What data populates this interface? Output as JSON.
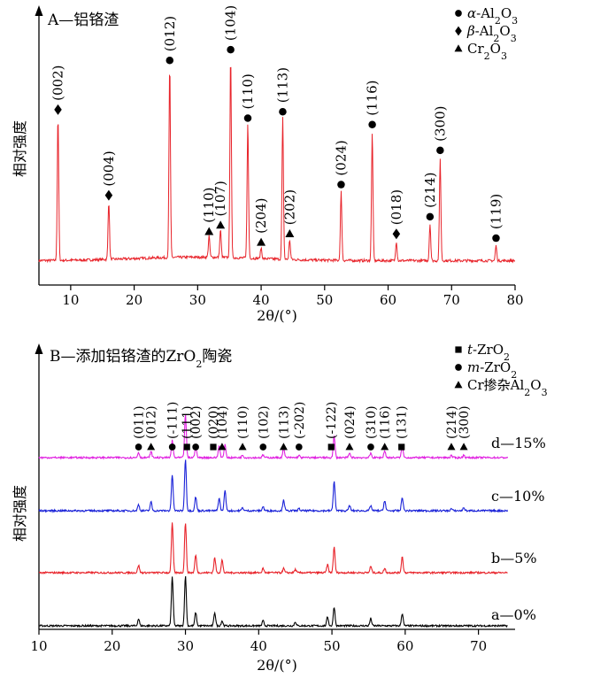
{
  "chart_data": [
    {
      "type": "line",
      "title": "A—铝铬渣",
      "xlabel": "2θ/(°)",
      "ylabel": "相对强度",
      "xlim": [
        5,
        80
      ],
      "xticks": [
        10,
        20,
        30,
        40,
        50,
        60,
        70,
        80
      ],
      "color": "#e8232a",
      "legend": [
        {
          "marker": "circle",
          "prefix": "α",
          "label": "-Al2O3"
        },
        {
          "marker": "diamond",
          "prefix": "β",
          "label": "-Al2O3"
        },
        {
          "marker": "triangle",
          "prefix": "",
          "label": "Cr2O3"
        }
      ],
      "peaks": [
        {
          "x": 8.0,
          "h": 0.67,
          "marker": "diamond",
          "hkl": "(002)"
        },
        {
          "x": 16.0,
          "h": 0.27,
          "marker": "diamond",
          "hkl": "(004)"
        },
        {
          "x": 25.6,
          "h": 0.9,
          "marker": "circle",
          "hkl": "(012)"
        },
        {
          "x": 31.8,
          "h": 0.1,
          "marker": "triangle",
          "hkl": "(110)"
        },
        {
          "x": 33.6,
          "h": 0.13,
          "marker": "triangle",
          "hkl": "(107)"
        },
        {
          "x": 35.2,
          "h": 0.95,
          "marker": "circle",
          "hkl": "(104)"
        },
        {
          "x": 37.9,
          "h": 0.63,
          "marker": "circle",
          "hkl": "(110)"
        },
        {
          "x": 40.0,
          "h": 0.05,
          "marker": "triangle",
          "hkl": "(204)"
        },
        {
          "x": 43.4,
          "h": 0.66,
          "marker": "circle",
          "hkl": "(113)"
        },
        {
          "x": 44.5,
          "h": 0.09,
          "marker": "triangle",
          "hkl": "(202)"
        },
        {
          "x": 52.6,
          "h": 0.32,
          "marker": "circle",
          "hkl": "(024)"
        },
        {
          "x": 57.5,
          "h": 0.6,
          "marker": "circle",
          "hkl": "(116)"
        },
        {
          "x": 61.3,
          "h": 0.09,
          "marker": "diamond",
          "hkl": "(018)"
        },
        {
          "x": 66.6,
          "h": 0.17,
          "marker": "circle",
          "hkl": "(214)"
        },
        {
          "x": 68.2,
          "h": 0.48,
          "marker": "circle",
          "hkl": "(300)"
        },
        {
          "x": 77.0,
          "h": 0.07,
          "marker": "circle",
          "hkl": "(119)"
        }
      ]
    },
    {
      "type": "line",
      "title": "B—添加铝铬渣的ZrO2陶瓷",
      "xlabel": "2θ/(°)",
      "ylabel": "相对强度",
      "xlim": [
        10,
        75
      ],
      "xticks": [
        10,
        20,
        30,
        40,
        50,
        60,
        70
      ],
      "legend": [
        {
          "marker": "square",
          "prefix": "t",
          "label": "-ZrO2"
        },
        {
          "marker": "circle",
          "prefix": "m",
          "label": "-ZrO2"
        },
        {
          "marker": "triangle",
          "prefix": "",
          "label": "Cr掺杂Al2O3"
        }
      ],
      "series": [
        {
          "name": "a—0%",
          "color": "#000000"
        },
        {
          "name": "b—5%",
          "color": "#e8232a"
        },
        {
          "name": "c—10%",
          "color": "#1a22d8"
        },
        {
          "name": "d—15%",
          "color": "#e020e0"
        }
      ],
      "annotations": [
        {
          "x": 23.6,
          "marker": "circle",
          "hkl": "(011)"
        },
        {
          "x": 25.3,
          "marker": "triangle",
          "hkl": "(012)"
        },
        {
          "x": 28.2,
          "marker": "circle",
          "hkl": "(-111)"
        },
        {
          "x": 30.2,
          "marker": "square",
          "hkl": "(111)"
        },
        {
          "x": 31.4,
          "marker": "circle",
          "hkl": "(002)"
        },
        {
          "x": 33.8,
          "marker": "square",
          "hkl": "(020)"
        },
        {
          "x": 35.0,
          "marker": "triangle",
          "hkl": "(104)"
        },
        {
          "x": 37.8,
          "marker": "triangle",
          "hkl": "(110)"
        },
        {
          "x": 40.6,
          "marker": "circle",
          "hkl": "(102)"
        },
        {
          "x": 43.4,
          "marker": "triangle",
          "hkl": "(113)"
        },
        {
          "x": 45.5,
          "marker": "circle",
          "hkl": "(-202)"
        },
        {
          "x": 49.9,
          "marker": "square",
          "hkl": "(-122)"
        },
        {
          "x": 52.4,
          "marker": "triangle",
          "hkl": "(024)"
        },
        {
          "x": 55.3,
          "marker": "circle",
          "hkl": "(310)"
        },
        {
          "x": 57.2,
          "marker": "triangle",
          "hkl": "(116)"
        },
        {
          "x": 59.5,
          "marker": "square",
          "hkl": "(131)"
        },
        {
          "x": 66.3,
          "marker": "triangle",
          "hkl": "(214)"
        },
        {
          "x": 68.0,
          "marker": "triangle",
          "hkl": "(300)"
        }
      ],
      "peaks_d": [
        {
          "x": 23.6,
          "h": 0.12
        },
        {
          "x": 25.3,
          "h": 0.14
        },
        {
          "x": 28.2,
          "h": 0.4
        },
        {
          "x": 30.0,
          "h": 1.0
        },
        {
          "x": 31.4,
          "h": 0.25
        },
        {
          "x": 34.6,
          "h": 0.28
        },
        {
          "x": 35.4,
          "h": 0.3
        },
        {
          "x": 37.8,
          "h": 0.06
        },
        {
          "x": 40.6,
          "h": 0.06
        },
        {
          "x": 43.4,
          "h": 0.22
        },
        {
          "x": 45.5,
          "h": 0.05
        },
        {
          "x": 50.3,
          "h": 0.5
        },
        {
          "x": 52.4,
          "h": 0.1
        },
        {
          "x": 55.3,
          "h": 0.1
        },
        {
          "x": 57.2,
          "h": 0.16
        },
        {
          "x": 59.6,
          "h": 0.26
        },
        {
          "x": 66.3,
          "h": 0.05
        },
        {
          "x": 68.0,
          "h": 0.06
        }
      ],
      "peaks_c": [
        {
          "x": 23.6,
          "h": 0.12
        },
        {
          "x": 25.3,
          "h": 0.17
        },
        {
          "x": 28.2,
          "h": 0.7
        },
        {
          "x": 30.0,
          "h": 1.0
        },
        {
          "x": 31.4,
          "h": 0.27
        },
        {
          "x": 34.6,
          "h": 0.25
        },
        {
          "x": 35.4,
          "h": 0.4
        },
        {
          "x": 37.8,
          "h": 0.06
        },
        {
          "x": 40.6,
          "h": 0.08
        },
        {
          "x": 43.4,
          "h": 0.22
        },
        {
          "x": 45.5,
          "h": 0.04
        },
        {
          "x": 50.3,
          "h": 0.58
        },
        {
          "x": 52.4,
          "h": 0.1
        },
        {
          "x": 55.3,
          "h": 0.1
        },
        {
          "x": 57.2,
          "h": 0.2
        },
        {
          "x": 59.6,
          "h": 0.26
        },
        {
          "x": 66.3,
          "h": 0.04
        },
        {
          "x": 68.0,
          "h": 0.06
        }
      ],
      "peaks_b": [
        {
          "x": 23.6,
          "h": 0.14
        },
        {
          "x": 28.2,
          "h": 0.95
        },
        {
          "x": 30.0,
          "h": 0.95
        },
        {
          "x": 31.4,
          "h": 0.33
        },
        {
          "x": 34.0,
          "h": 0.28
        },
        {
          "x": 35.0,
          "h": 0.24
        },
        {
          "x": 40.6,
          "h": 0.08
        },
        {
          "x": 43.4,
          "h": 0.08
        },
        {
          "x": 45.0,
          "h": 0.06
        },
        {
          "x": 49.4,
          "h": 0.15
        },
        {
          "x": 50.3,
          "h": 0.48
        },
        {
          "x": 55.3,
          "h": 0.12
        },
        {
          "x": 57.2,
          "h": 0.08
        },
        {
          "x": 59.6,
          "h": 0.3
        }
      ],
      "peaks_a": [
        {
          "x": 23.6,
          "h": 0.14
        },
        {
          "x": 28.2,
          "h": 1.0
        },
        {
          "x": 30.0,
          "h": 1.0
        },
        {
          "x": 31.4,
          "h": 0.27
        },
        {
          "x": 34.0,
          "h": 0.27
        },
        {
          "x": 35.0,
          "h": 0.1
        },
        {
          "x": 40.6,
          "h": 0.1
        },
        {
          "x": 45.0,
          "h": 0.08
        },
        {
          "x": 49.4,
          "h": 0.18
        },
        {
          "x": 50.3,
          "h": 0.38
        },
        {
          "x": 55.3,
          "h": 0.15
        },
        {
          "x": 59.6,
          "h": 0.25
        }
      ]
    }
  ]
}
